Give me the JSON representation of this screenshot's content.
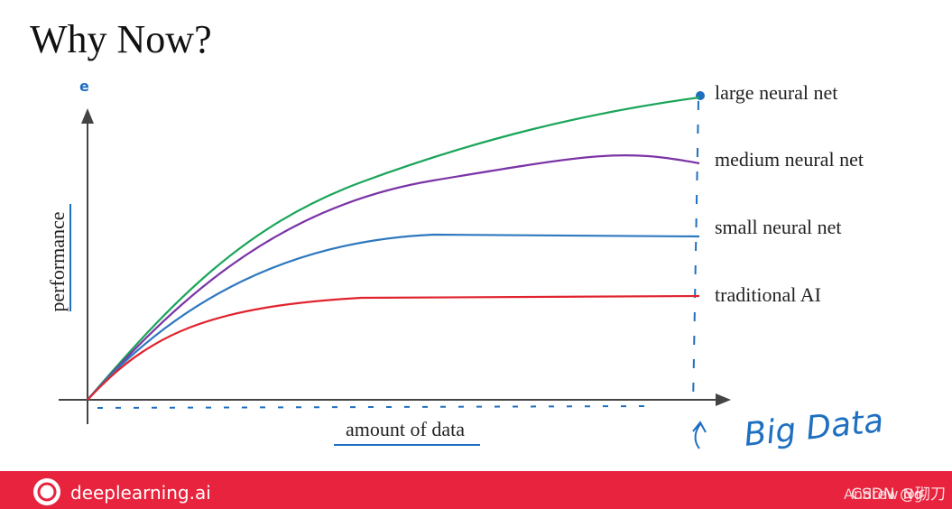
{
  "header": {
    "title": "Why Now?"
  },
  "axes": {
    "y_label": "performance",
    "x_label": "amount of data"
  },
  "curves": [
    {
      "label": "large neural net"
    },
    {
      "label": "medium neural net"
    },
    {
      "label": "small neural net"
    },
    {
      "label": "traditional AI"
    }
  ],
  "annotation": "Big Data",
  "footer": {
    "brand": "deeplearning.ai",
    "author": "Andrew Ng",
    "watermark": "CSDN @砌刀"
  }
}
